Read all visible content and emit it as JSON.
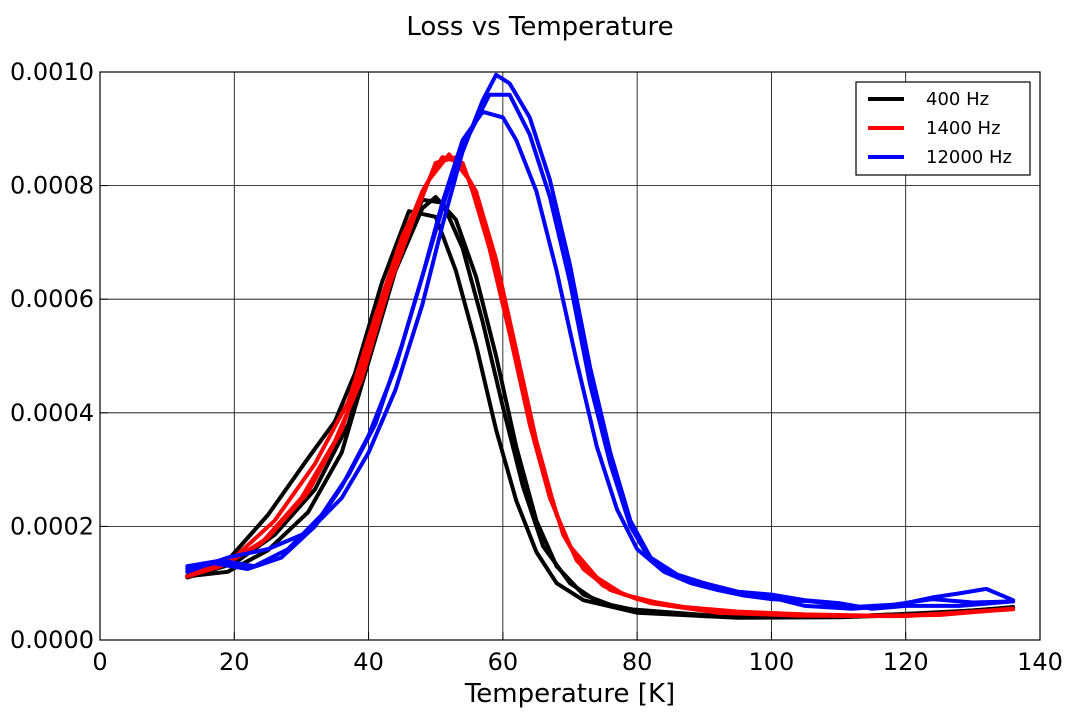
{
  "chart_data": {
    "type": "line",
    "title": "Loss vs Temperature",
    "xlabel": "Temperature [K]",
    "ylabel": "",
    "xlim": [
      0,
      140
    ],
    "ylim": [
      0,
      0.001
    ],
    "x_ticks": [
      "0",
      "20",
      "40",
      "60",
      "80",
      "100",
      "120",
      "140"
    ],
    "y_ticks": [
      "0.0000",
      "0.0002",
      "0.0004",
      "0.0006",
      "0.0008",
      "0.0010"
    ],
    "grid": true,
    "legend_position": "top-right",
    "legend": [
      {
        "label": "400 Hz",
        "color": "#000000"
      },
      {
        "label": "1400 Hz",
        "color": "#ff0000"
      },
      {
        "label": "12000 Hz",
        "color": "#0000ff"
      }
    ],
    "series": [
      {
        "color": "#000000",
        "points": [
          [
            13,
            0.000112
          ],
          [
            19,
            0.00012
          ],
          [
            25,
            0.000158
          ],
          [
            31,
            0.000225
          ],
          [
            36,
            0.00033
          ],
          [
            40,
            0.00049
          ],
          [
            44,
            0.00065
          ],
          [
            48,
            0.00076
          ],
          [
            50,
            0.00078
          ],
          [
            53,
            0.00074
          ],
          [
            56,
            0.00064
          ],
          [
            59,
            0.0005
          ],
          [
            62,
            0.00034
          ],
          [
            65,
            0.00021
          ],
          [
            68,
            0.00013
          ],
          [
            72,
            8e-05
          ],
          [
            76,
            6.2e-05
          ],
          [
            80,
            5.2e-05
          ],
          [
            90,
            4.2e-05
          ],
          [
            100,
            4e-05
          ],
          [
            110,
            4.1e-05
          ],
          [
            120,
            4.6e-05
          ],
          [
            130,
            5.2e-05
          ],
          [
            136,
            5.8e-05
          ]
        ]
      },
      {
        "color": "#000000",
        "points": [
          [
            13,
            0.00011
          ],
          [
            20,
            0.000135
          ],
          [
            26,
            0.000185
          ],
          [
            32,
            0.000265
          ],
          [
            37,
            0.00038
          ],
          [
            41,
            0.00054
          ],
          [
            45,
            0.00069
          ],
          [
            48,
            0.000775
          ],
          [
            51,
            0.00077
          ],
          [
            54,
            0.00069
          ],
          [
            57,
            0.00056
          ],
          [
            60,
            0.00041
          ],
          [
            63,
            0.00027
          ],
          [
            66,
            0.000165
          ],
          [
            70,
            0.0001
          ],
          [
            74,
            6.8e-05
          ],
          [
            78,
            5.5e-05
          ],
          [
            90,
            4.4e-05
          ],
          [
            100,
            4e-05
          ],
          [
            112,
            4.2e-05
          ],
          [
            124,
            4.7e-05
          ],
          [
            136,
            5.7e-05
          ]
        ]
      },
      {
        "color": "#000000",
        "points": [
          [
            13,
            0.000113
          ],
          [
            19,
            0.00014
          ],
          [
            25,
            0.00022
          ],
          [
            31,
            0.00032
          ],
          [
            35,
            0.000385
          ],
          [
            38,
            0.00047
          ],
          [
            42,
            0.00063
          ],
          [
            46,
            0.000755
          ],
          [
            50,
            0.000745
          ],
          [
            53,
            0.00065
          ],
          [
            56,
            0.00052
          ],
          [
            59,
            0.00037
          ],
          [
            62,
            0.000245
          ],
          [
            65,
            0.000155
          ],
          [
            68,
            0.0001
          ],
          [
            72,
            7e-05
          ],
          [
            80,
            4.8e-05
          ],
          [
            95,
            3.9e-05
          ],
          [
            110,
            4e-05
          ],
          [
            125,
            4.6e-05
          ],
          [
            136,
            5.8e-05
          ]
        ]
      },
      {
        "color": "#ff0000",
        "points": [
          [
            13,
            0.000112
          ],
          [
            18,
            0.00013
          ],
          [
            24,
            0.00017
          ],
          [
            30,
            0.00025
          ],
          [
            35,
            0.00035
          ],
          [
            39,
            0.00046
          ],
          [
            43,
            0.00062
          ],
          [
            47,
            0.00075
          ],
          [
            50,
            0.00084
          ],
          [
            53,
            0.00085
          ],
          [
            56,
            0.00079
          ],
          [
            59,
            0.00067
          ],
          [
            62,
            0.00051
          ],
          [
            65,
            0.00035
          ],
          [
            68,
            0.00022
          ],
          [
            71,
            0.00014
          ],
          [
            75,
            9.5e-05
          ],
          [
            80,
            7.2e-05
          ],
          [
            90,
            5.2e-05
          ],
          [
            100,
            4.5e-05
          ],
          [
            110,
            4.3e-05
          ],
          [
            120,
            4.2e-05
          ],
          [
            130,
            5e-05
          ],
          [
            136,
            5.5e-05
          ]
        ]
      },
      {
        "color": "#ff0000",
        "points": [
          [
            13,
            0.000112
          ],
          [
            19,
            0.000135
          ],
          [
            25,
            0.00018
          ],
          [
            31,
            0.00026
          ],
          [
            36,
            0.00037
          ],
          [
            40,
            0.00051
          ],
          [
            44,
            0.00067
          ],
          [
            48,
            0.00079
          ],
          [
            51,
            0.00085
          ],
          [
            54,
            0.00084
          ],
          [
            57,
            0.00074
          ],
          [
            60,
            0.0006
          ],
          [
            63,
            0.00044
          ],
          [
            66,
            0.0003
          ],
          [
            69,
            0.000185
          ],
          [
            72,
            0.000125
          ],
          [
            76,
            8.8e-05
          ],
          [
            82,
            6.5e-05
          ],
          [
            92,
            4.8e-05
          ],
          [
            104,
            4.3e-05
          ],
          [
            118,
            4.2e-05
          ],
          [
            128,
            4.8e-05
          ],
          [
            136,
            5.4e-05
          ]
        ]
      },
      {
        "color": "#ff0000",
        "points": [
          [
            13,
            0.000112
          ],
          [
            20,
            0.000145
          ],
          [
            26,
            0.00021
          ],
          [
            32,
            0.00031
          ],
          [
            37,
            0.00042
          ],
          [
            41,
            0.00057
          ],
          [
            45,
            0.00071
          ],
          [
            49,
            0.00081
          ],
          [
            52,
            0.000855
          ],
          [
            55,
            0.00081
          ],
          [
            58,
            0.00069
          ],
          [
            61,
            0.00054
          ],
          [
            64,
            0.00038
          ],
          [
            67,
            0.00025
          ],
          [
            70,
            0.000165
          ],
          [
            74,
            0.00011
          ],
          [
            78,
            8e-05
          ],
          [
            85,
            6e-05
          ],
          [
            95,
            5e-05
          ],
          [
            105,
            4.5e-05
          ],
          [
            115,
            4.3e-05
          ],
          [
            125,
            4.4e-05
          ],
          [
            136,
            5.5e-05
          ]
        ]
      },
      {
        "color": "#0000ff",
        "points": [
          [
            13,
            0.00013
          ],
          [
            18,
            0.00014
          ],
          [
            23,
            0.00013
          ],
          [
            28,
            0.00016
          ],
          [
            33,
            0.00022
          ],
          [
            37,
            0.00029
          ],
          [
            41,
            0.00038
          ],
          [
            45,
            0.00052
          ],
          [
            49,
            0.00068
          ],
          [
            52,
            0.0008
          ],
          [
            55,
            0.00089
          ],
          [
            58,
            0.00096
          ],
          [
            61,
            0.00096
          ],
          [
            64,
            0.00089
          ],
          [
            67,
            0.00078
          ],
          [
            70,
            0.00063
          ],
          [
            73,
            0.00045
          ],
          [
            76,
            0.00031
          ],
          [
            79,
            0.0002
          ],
          [
            82,
            0.00014
          ],
          [
            86,
            0.00011
          ],
          [
            90,
            0.0001
          ],
          [
            95,
            8.5e-05
          ],
          [
            100,
            8e-05
          ],
          [
            105,
            7e-05
          ],
          [
            110,
            6.5e-05
          ],
          [
            115,
            5.5e-05
          ],
          [
            120,
            6e-05
          ],
          [
            128,
            6e-05
          ],
          [
            136,
            6.8e-05
          ]
        ]
      },
      {
        "color": "#0000ff",
        "points": [
          [
            13,
            0.00012
          ],
          [
            19,
            0.000145
          ],
          [
            25,
            0.00016
          ],
          [
            31,
            0.00019
          ],
          [
            36,
            0.00025
          ],
          [
            40,
            0.00033
          ],
          [
            44,
            0.00044
          ],
          [
            48,
            0.00059
          ],
          [
            51,
            0.00073
          ],
          [
            54,
            0.00086
          ],
          [
            57,
            0.00095
          ],
          [
            59,
            0.000995
          ],
          [
            61,
            0.00098
          ],
          [
            64,
            0.00092
          ],
          [
            67,
            0.00081
          ],
          [
            70,
            0.00066
          ],
          [
            73,
            0.00048
          ],
          [
            76,
            0.00033
          ],
          [
            79,
            0.00021
          ],
          [
            82,
            0.000145
          ],
          [
            86,
            0.000115
          ],
          [
            90,
            0.0001
          ],
          [
            95,
            8.2e-05
          ],
          [
            100,
            7.5e-05
          ],
          [
            105,
            6e-05
          ],
          [
            112,
            5.5e-05
          ],
          [
            118,
            6e-05
          ],
          [
            124,
            7.5e-05
          ],
          [
            128,
            8.2e-05
          ],
          [
            132,
            9e-05
          ],
          [
            136,
            7e-05
          ]
        ]
      },
      {
        "color": "#0000ff",
        "points": [
          [
            13,
            0.000125
          ],
          [
            17,
            0.000135
          ],
          [
            22,
            0.000125
          ],
          [
            27,
            0.000145
          ],
          [
            32,
            0.0002
          ],
          [
            36,
            0.00027
          ],
          [
            40,
            0.00036
          ],
          [
            44,
            0.00048
          ],
          [
            48,
            0.00064
          ],
          [
            51,
            0.00077
          ],
          [
            54,
            0.00088
          ],
          [
            57,
            0.00093
          ],
          [
            60,
            0.00092
          ],
          [
            62,
            0.00088
          ],
          [
            65,
            0.00079
          ],
          [
            68,
            0.00065
          ],
          [
            71,
            0.00049
          ],
          [
            74,
            0.00034
          ],
          [
            77,
            0.00023
          ],
          [
            80,
            0.00016
          ],
          [
            84,
            0.00012
          ],
          [
            88,
            0.0001
          ],
          [
            92,
            8.8e-05
          ],
          [
            96,
            7.8e-05
          ],
          [
            100,
            7.2e-05
          ],
          [
            106,
            6.8e-05
          ],
          [
            112,
            5.8e-05
          ],
          [
            118,
            6.2e-05
          ],
          [
            124,
            7.2e-05
          ],
          [
            130,
            6.6e-05
          ],
          [
            136,
            6.8e-05
          ]
        ]
      }
    ]
  }
}
